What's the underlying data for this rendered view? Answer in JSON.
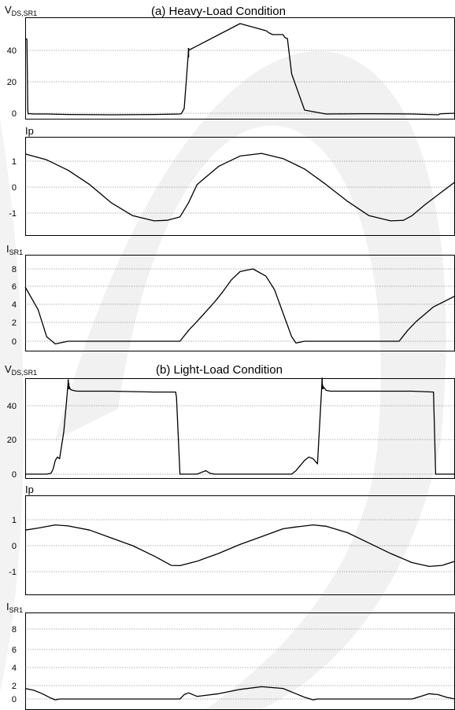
{
  "titles": {
    "heavy": "(a) Heavy-Load Condition",
    "light": "(b) Light-Load Condition"
  },
  "colors": {
    "trace": "#000000",
    "grid": "#666666",
    "frame": "#000000",
    "watermark": "#f1f1f1"
  },
  "chart_data": [
    {
      "type": "line",
      "title": "(a) Heavy-Load Condition",
      "ylabel_main": "V",
      "ylabel_sub": "DS,SR1",
      "yticks": [
        "40",
        "20",
        "0"
      ],
      "ylim": [
        -2,
        58
      ],
      "grid": true,
      "x": [
        0.0,
        0.004,
        0.005,
        0.006,
        0.007,
        0.008,
        0.012,
        0.02,
        0.05,
        0.1,
        0.2,
        0.3,
        0.36,
        0.363,
        0.364,
        0.37,
        0.38,
        0.5,
        0.56,
        0.568,
        0.576,
        0.6,
        0.6008,
        0.6015,
        0.6023,
        0.6031,
        0.605,
        0.61,
        0.62,
        0.65,
        0.7,
        0.8,
        0.9,
        0.96,
        0.963,
        0.964,
        0.97,
        1.0
      ],
      "values": [
        47.5,
        47,
        25,
        2,
        -0.5,
        -0.3,
        -0.3,
        -0.5,
        -0.5,
        -0.8,
        -1,
        -0.8,
        -0.5,
        -0.3,
        0,
        3,
        40,
        57,
        52.5,
        51,
        50,
        50,
        49.6,
        49.3,
        49,
        48.5,
        48,
        47.5,
        25,
        2,
        -0.5,
        -0.3,
        -0.5,
        -1,
        -0.8,
        -0.5,
        -0.3,
        0
      ]
    },
    {
      "type": "line",
      "ylabel_main": "Ip",
      "ylabel_sub": "",
      "yticks": [
        "1",
        "0",
        "-1"
      ],
      "ylim": [
        -1.6,
        1.6
      ],
      "grid": true,
      "x": [
        0.0,
        0.05,
        0.1,
        0.15,
        0.2,
        0.25,
        0.3,
        0.33,
        0.36,
        0.38,
        0.4,
        0.45,
        0.5,
        0.55,
        0.6,
        0.65,
        0.7,
        0.75,
        0.8,
        0.85,
        0.88,
        0.9,
        0.93,
        0.96,
        1.0
      ],
      "values": [
        1.28,
        1.05,
        0.65,
        0.1,
        -0.6,
        -1.1,
        -1.3,
        -1.28,
        -1.15,
        -0.6,
        0.1,
        0.8,
        1.2,
        1.3,
        1.1,
        0.7,
        0.1,
        -0.55,
        -1.1,
        -1.3,
        -1.28,
        -1.1,
        -0.68,
        -0.3,
        0.2
      ]
    },
    {
      "type": "line",
      "ylabel_main": "I",
      "ylabel_sub": "SR1",
      "yticks": [
        "8",
        "6",
        "4",
        "2",
        "0"
      ],
      "ylim": [
        -1,
        9.5
      ],
      "grid": true,
      "x": [
        0.0,
        0.03,
        0.05,
        0.07,
        0.1,
        0.15,
        0.2,
        0.3,
        0.36,
        0.38,
        0.4,
        0.44,
        0.46,
        0.48,
        0.5,
        0.53,
        0.56,
        0.58,
        0.62,
        0.63,
        0.65,
        0.7,
        0.8,
        0.87,
        0.89,
        0.91,
        0.95,
        1.0
      ],
      "values": [
        6,
        3.5,
        0.5,
        -0.3,
        0,
        0,
        0,
        0,
        0,
        1.2,
        2.2,
        4.3,
        5.5,
        6.8,
        7.7,
        8,
        7.2,
        5.7,
        0.5,
        -0.2,
        0,
        0,
        0,
        0,
        1.2,
        2.2,
        3.8,
        5
      ]
    },
    {
      "type": "line",
      "title": "(b) Light-Load Condition",
      "ylabel_main": "V",
      "ylabel_sub": "DS,SR1",
      "yticks": [
        "40",
        "20",
        "0"
      ],
      "ylim": [
        -2,
        56
      ],
      "grid": true,
      "x": [
        0.0,
        0.05,
        0.06,
        0.065,
        0.07,
        0.075,
        0.08,
        0.09,
        0.1001,
        0.1008,
        0.1016,
        0.102,
        0.103,
        0.105,
        0.11,
        0.12,
        0.2,
        0.3,
        0.35,
        0.352,
        0.36,
        0.38,
        0.4,
        0.41,
        0.42,
        0.43,
        0.44,
        0.5,
        0.6,
        0.62,
        0.63,
        0.64,
        0.65,
        0.66,
        0.67,
        0.68,
        0.6908,
        0.6915,
        0.6923,
        0.693,
        0.694,
        0.7,
        0.71,
        0.8,
        0.9,
        0.95,
        0.955,
        0.96,
        1.0
      ],
      "values": [
        0,
        0,
        0.5,
        3,
        8,
        10,
        9,
        25,
        54,
        50,
        53,
        50,
        51,
        49.5,
        49,
        48.5,
        48.5,
        48,
        48,
        45,
        0,
        0,
        0,
        1,
        2,
        0.5,
        0,
        0,
        0,
        0,
        2,
        5,
        8,
        10,
        9,
        6,
        55,
        50,
        52,
        50,
        51,
        49,
        48.5,
        48.5,
        48.5,
        48,
        0,
        0,
        0
      ]
    },
    {
      "type": "line",
      "ylabel_main": "Ip",
      "ylabel_sub": "",
      "yticks": [
        "1",
        "0",
        "-1"
      ],
      "ylim": [
        -1.9,
        1.9
      ],
      "grid": true,
      "x": [
        0.0,
        0.03,
        0.07,
        0.1,
        0.15,
        0.2,
        0.25,
        0.3,
        0.34,
        0.36,
        0.4,
        0.45,
        0.5,
        0.55,
        0.6,
        0.63,
        0.67,
        0.7,
        0.75,
        0.8,
        0.85,
        0.9,
        0.94,
        0.97,
        1.0
      ],
      "values": [
        0.6,
        0.68,
        0.8,
        0.76,
        0.6,
        0.3,
        0,
        -0.4,
        -0.76,
        -0.77,
        -0.6,
        -0.3,
        0.05,
        0.35,
        0.65,
        0.72,
        0.8,
        0.75,
        0.5,
        0.1,
        -0.3,
        -0.65,
        -0.8,
        -0.76,
        -0.6
      ]
    },
    {
      "type": "line",
      "ylabel_main": "I",
      "ylabel_sub": "SR1",
      "yticks": [
        "8",
        "6",
        "4",
        "2",
        "0"
      ],
      "ylim": [
        -0.8,
        9.6
      ],
      "grid": true,
      "x": [
        0.0,
        0.02,
        0.04,
        0.06,
        0.07,
        0.08,
        0.1,
        0.2,
        0.36,
        0.37,
        0.38,
        0.4,
        0.45,
        0.5,
        0.55,
        0.6,
        0.63,
        0.65,
        0.67,
        0.68,
        0.7,
        0.8,
        0.9,
        0.92,
        0.94,
        0.96,
        0.98,
        1.0
      ],
      "values": [
        1.2,
        1.0,
        0.6,
        0.1,
        -0.1,
        0,
        0,
        0,
        0,
        0.5,
        0.7,
        0.3,
        0.6,
        1.1,
        1.4,
        1.2,
        0.6,
        0.2,
        -0.1,
        0,
        0,
        0,
        0,
        0.3,
        0.6,
        0.5,
        0.2,
        0
      ]
    }
  ]
}
